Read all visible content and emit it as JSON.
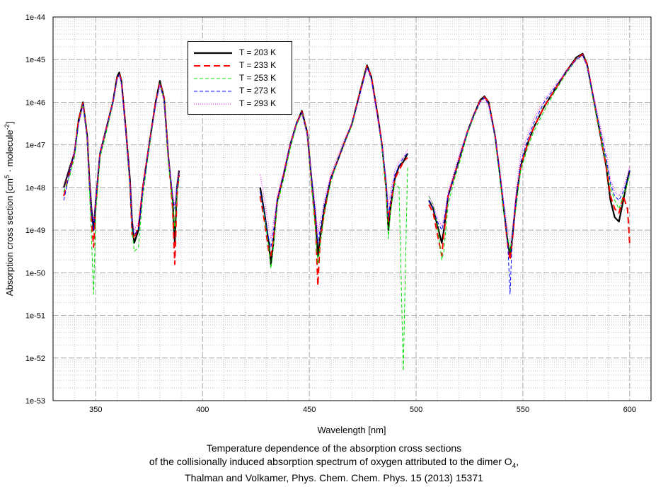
{
  "chart_data": {
    "type": "line",
    "title": "Temperature dependence of the absorption cross sections",
    "subtitle": "of the collisionally induced absorption spectrum of oxygen attributed to the dimer O",
    "subtitle_subscript": "4",
    "subtitle_end": ",",
    "citation": "Thalman and Volkamer, Phys. Chem. Chem. Phys. 15 (2013) 15371",
    "xlabel": "Wavelength [nm]",
    "ylabel_parts": [
      "Absorption cross section [cm",
      "5",
      " · molecule",
      "-2",
      "]"
    ],
    "xlim": [
      330,
      610
    ],
    "ylim_log10": [
      -53,
      -44
    ],
    "yscale": "log",
    "grid": true,
    "legend_position": "top-left",
    "x_ticks": [
      350,
      400,
      450,
      500,
      550,
      600
    ],
    "x_tick_labels": [
      "350",
      "400",
      "450",
      "500",
      "550",
      "600"
    ],
    "y_ticks_log10": [
      -44,
      -45,
      -46,
      -47,
      -48,
      -49,
      -50,
      -51,
      -52,
      -53
    ],
    "y_tick_labels": [
      "1e-44",
      "1e-45",
      "1e-46",
      "1e-47",
      "1e-48",
      "1e-49",
      "1e-50",
      "1e-51",
      "1e-52",
      "1e-53"
    ],
    "x_segments": [
      [
        335,
        338,
        340,
        342,
        344,
        346,
        347,
        348,
        349,
        350,
        352,
        355,
        358,
        360,
        361,
        362,
        364,
        366,
        367,
        368,
        370,
        372,
        375,
        378,
        380,
        382,
        384,
        386,
        387,
        388,
        389
      ],
      [
        427,
        429,
        431,
        432,
        433,
        435,
        438,
        441,
        444,
        446.5,
        449,
        451,
        453,
        454,
        455,
        457,
        460,
        463,
        466,
        470,
        474,
        477,
        479,
        482,
        484,
        486,
        487,
        488,
        490,
        492,
        494,
        496
      ],
      [
        506,
        508,
        510,
        512,
        513,
        515,
        518,
        521,
        524,
        527,
        530,
        532,
        534,
        537,
        539,
        541,
        543,
        544,
        545,
        547,
        549,
        552,
        555,
        560,
        565,
        570,
        575,
        578,
        580,
        583,
        586,
        589,
        591,
        593,
        595,
        597,
        599,
        600
      ]
    ],
    "series": [
      {
        "name": "T = 203 K",
        "color": "#000000",
        "style": "solid",
        "log10_y": [
          [
            -48.0,
            -47.5,
            -47.2,
            -46.4,
            -46.0,
            -46.8,
            -47.8,
            -48.5,
            -49.0,
            -48.3,
            -47.2,
            -46.6,
            -46.0,
            -45.4,
            -45.3,
            -45.5,
            -46.6,
            -47.8,
            -48.8,
            -49.3,
            -49.0,
            -48.0,
            -47.0,
            -46.0,
            -45.5,
            -45.9,
            -47.3,
            -48.3,
            -49.3,
            -48.0,
            -47.6
          ],
          [
            -48.0,
            -48.6,
            -49.3,
            -49.8,
            -49.4,
            -48.3,
            -47.7,
            -47.0,
            -46.5,
            -46.2,
            -46.7,
            -47.8,
            -48.8,
            -49.6,
            -49.2,
            -48.5,
            -47.8,
            -47.4,
            -47.0,
            -46.5,
            -45.7,
            -45.13,
            -45.4,
            -46.3,
            -47.0,
            -48.0,
            -49.0,
            -48.5,
            -47.8,
            -47.5,
            -47.4,
            -47.2
          ],
          [
            -48.3,
            -48.5,
            -48.9,
            -49.3,
            -49.0,
            -48.2,
            -47.7,
            -47.2,
            -46.7,
            -46.3,
            -45.95,
            -45.86,
            -46.0,
            -46.8,
            -47.6,
            -48.5,
            -49.3,
            -49.6,
            -49.2,
            -48.2,
            -47.5,
            -47.0,
            -46.6,
            -46.1,
            -45.7,
            -45.3,
            -44.95,
            -44.86,
            -45.1,
            -45.9,
            -46.7,
            -47.5,
            -48.3,
            -48.7,
            -48.8,
            -48.3,
            -47.8,
            -47.6
          ]
        ]
      },
      {
        "name": "T = 233 K",
        "color": "#ff0000",
        "style": "long-dash",
        "log10_y": [
          [
            -48.2,
            -47.6,
            -47.2,
            -46.4,
            -46.02,
            -46.8,
            -47.9,
            -48.8,
            -49.4,
            -48.4,
            -47.2,
            -46.6,
            -46.0,
            -45.42,
            -45.33,
            -45.5,
            -46.6,
            -47.9,
            -49.1,
            -49.2,
            -48.9,
            -48.0,
            -47.0,
            -46.0,
            -45.53,
            -45.9,
            -47.3,
            -48.5,
            -49.8,
            -48.2,
            -47.7
          ],
          [
            -48.2,
            -48.8,
            -49.5,
            -49.6,
            -49.3,
            -48.3,
            -47.7,
            -47.0,
            -46.5,
            -46.22,
            -46.7,
            -47.9,
            -49.0,
            -50.3,
            -49.3,
            -48.6,
            -47.8,
            -47.4,
            -47.0,
            -46.5,
            -45.7,
            -45.15,
            -45.4,
            -46.3,
            -47.0,
            -48.1,
            -48.8,
            -48.4,
            -47.8,
            -47.6,
            -47.4,
            -47.3
          ],
          [
            -48.4,
            -48.6,
            -49.1,
            -49.6,
            -49.1,
            -48.2,
            -47.7,
            -47.2,
            -46.7,
            -46.3,
            -45.97,
            -45.88,
            -46.0,
            -46.8,
            -47.6,
            -48.5,
            -49.4,
            -49.7,
            -49.3,
            -48.2,
            -47.5,
            -47.0,
            -46.6,
            -46.1,
            -45.7,
            -45.3,
            -44.97,
            -44.88,
            -45.1,
            -45.9,
            -46.7,
            -47.5,
            -48.2,
            -48.5,
            -48.6,
            -48.2,
            -48.5,
            -49.3
          ]
        ]
      },
      {
        "name": "T = 253 K",
        "color": "#00e000",
        "style": "dash",
        "log10_y": [
          [
            -48.1,
            -47.7,
            -47.3,
            -46.5,
            -46.05,
            -46.9,
            -48.0,
            -49.2,
            -50.5,
            -48.6,
            -47.3,
            -46.7,
            -46.05,
            -45.45,
            -45.35,
            -45.55,
            -46.7,
            -48.0,
            -49.0,
            -49.5,
            -49.4,
            -48.2,
            -47.1,
            -46.05,
            -45.56,
            -45.95,
            -47.4,
            -48.4,
            -49.0,
            -48.1,
            -47.8
          ],
          [
            -48.1,
            -48.7,
            -49.4,
            -49.9,
            -49.5,
            -48.4,
            -47.8,
            -47.1,
            -46.55,
            -46.25,
            -46.75,
            -47.9,
            -49.1,
            -49.8,
            -49.4,
            -48.6,
            -47.9,
            -47.4,
            -47.0,
            -46.55,
            -45.75,
            -45.17,
            -45.45,
            -46.35,
            -47.1,
            -48.1,
            -49.2,
            -48.6,
            -47.9,
            -48.0,
            -52.3,
            -47.5
          ],
          [
            -48.2,
            -48.4,
            -48.9,
            -49.7,
            -49.5,
            -48.4,
            -47.8,
            -47.3,
            -46.75,
            -46.35,
            -46.0,
            -45.9,
            -46.05,
            -46.85,
            -47.7,
            -48.6,
            -49.2,
            -49.5,
            -49.1,
            -48.4,
            -47.6,
            -47.1,
            -46.7,
            -46.2,
            -45.75,
            -45.35,
            -45.0,
            -44.9,
            -45.15,
            -45.95,
            -46.7,
            -47.4,
            -48.0,
            -48.3,
            -48.5,
            -48.2,
            -47.9,
            -47.7
          ]
        ]
      },
      {
        "name": "T = 273 K",
        "color": "#0000ff",
        "style": "dash",
        "log10_y": [
          [
            -48.3,
            -47.6,
            -47.2,
            -46.5,
            -46.05,
            -46.85,
            -47.9,
            -48.6,
            -49.0,
            -48.3,
            -47.2,
            -46.6,
            -46.0,
            -45.45,
            -45.35,
            -45.55,
            -46.65,
            -47.9,
            -48.9,
            -49.1,
            -49.0,
            -48.1,
            -47.0,
            -46.05,
            -45.58,
            -45.95,
            -47.3,
            -48.2,
            -48.5,
            -48.0,
            -47.7
          ],
          [
            -48.1,
            -48.6,
            -49.2,
            -49.4,
            -49.1,
            -48.3,
            -47.7,
            -47.0,
            -46.5,
            -46.25,
            -46.75,
            -47.8,
            -48.7,
            -49.3,
            -49.0,
            -48.4,
            -47.8,
            -47.4,
            -47.0,
            -46.5,
            -45.75,
            -45.18,
            -45.45,
            -46.35,
            -47.0,
            -47.9,
            -48.7,
            -48.3,
            -47.7,
            -47.5,
            -47.3,
            -47.2
          ],
          [
            -48.3,
            -48.5,
            -48.8,
            -49.0,
            -48.8,
            -48.2,
            -47.7,
            -47.2,
            -46.7,
            -46.3,
            -46.0,
            -45.9,
            -46.05,
            -46.8,
            -47.6,
            -48.4,
            -49.4,
            -50.5,
            -49.2,
            -48.2,
            -47.4,
            -46.9,
            -46.5,
            -46.0,
            -45.65,
            -45.3,
            -45.0,
            -44.9,
            -45.15,
            -45.9,
            -46.6,
            -47.3,
            -47.9,
            -48.2,
            -48.3,
            -48.1,
            -47.8,
            -47.6
          ]
        ]
      },
      {
        "name": "T = 293 K",
        "color": "#ff00ff",
        "style": "dot",
        "log10_y": [
          [
            -48.0,
            -47.5,
            -47.1,
            -46.5,
            -46.1,
            -46.9,
            -47.8,
            -48.4,
            -48.8,
            -48.2,
            -47.2,
            -46.6,
            -46.05,
            -45.48,
            -45.38,
            -45.6,
            -46.7,
            -47.8,
            -48.7,
            -49.0,
            -48.8,
            -48.0,
            -47.0,
            -46.1,
            -45.6,
            -46.0,
            -47.3,
            -48.2,
            -48.4,
            -47.9,
            -47.6
          ],
          [
            -47.7,
            -48.3,
            -48.9,
            -49.2,
            -48.9,
            -48.2,
            -47.6,
            -47.0,
            -46.5,
            -46.28,
            -46.8,
            -47.7,
            -48.5,
            -49.1,
            -48.8,
            -48.3,
            -47.7,
            -47.3,
            -46.9,
            -46.5,
            -45.8,
            -45.2,
            -45.5,
            -46.4,
            -47.0,
            -47.8,
            -48.4,
            -48.1,
            -47.6,
            -47.4,
            -47.3,
            -47.1
          ],
          [
            -48.2,
            -48.4,
            -48.7,
            -48.9,
            -48.7,
            -48.1,
            -47.6,
            -47.1,
            -46.7,
            -46.3,
            -46.0,
            -45.92,
            -46.1,
            -46.8,
            -47.5,
            -48.3,
            -49.0,
            -49.3,
            -49.0,
            -48.0,
            -47.2,
            -46.8,
            -46.4,
            -45.95,
            -45.6,
            -45.3,
            -45.0,
            -44.92,
            -45.15,
            -45.8,
            -46.5,
            -47.2,
            -47.8,
            -48.1,
            -48.2,
            -48.0,
            -47.7,
            -47.5
          ]
        ]
      }
    ]
  }
}
